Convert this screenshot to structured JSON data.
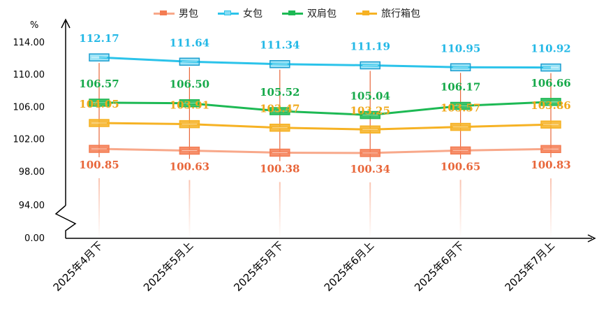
{
  "chart_data": {
    "type": "line",
    "ylabel": "%",
    "categories": [
      "2025年4月下",
      "2025年5月上",
      "2025年5月下",
      "2025年6月上",
      "2025年6月下",
      "2025年7月上"
    ],
    "yticks": [
      "0.00",
      "94.00",
      "98.00",
      "102.00",
      "106.00",
      "110.00",
      "114.00"
    ],
    "ylim": [
      94,
      114
    ],
    "axis_break": true,
    "grid": false,
    "legend_position": "top",
    "series": [
      {
        "name": "男包",
        "color": "#F47C52",
        "line_color": "#F8A88A",
        "label_color": "#E8663A",
        "values": [
          100.85,
          100.63,
          100.38,
          100.34,
          100.65,
          100.83
        ]
      },
      {
        "name": "女包",
        "color": "#2BC3EA",
        "line_color": "#2BC3EA",
        "label_color": "#23B8E6",
        "values": [
          112.17,
          111.64,
          111.34,
          111.19,
          110.95,
          110.92
        ]
      },
      {
        "name": "双肩包",
        "color": "#1DB954",
        "line_color": "#1DB954",
        "label_color": "#16A94A",
        "values": [
          106.57,
          106.5,
          105.52,
          105.04,
          106.17,
          106.66
        ]
      },
      {
        "name": "旅行箱包",
        "color": "#F6B224",
        "line_color": "#F6B224",
        "label_color": "#F0A81A",
        "values": [
          104.05,
          103.91,
          103.47,
          103.25,
          103.57,
          103.86
        ]
      }
    ]
  }
}
